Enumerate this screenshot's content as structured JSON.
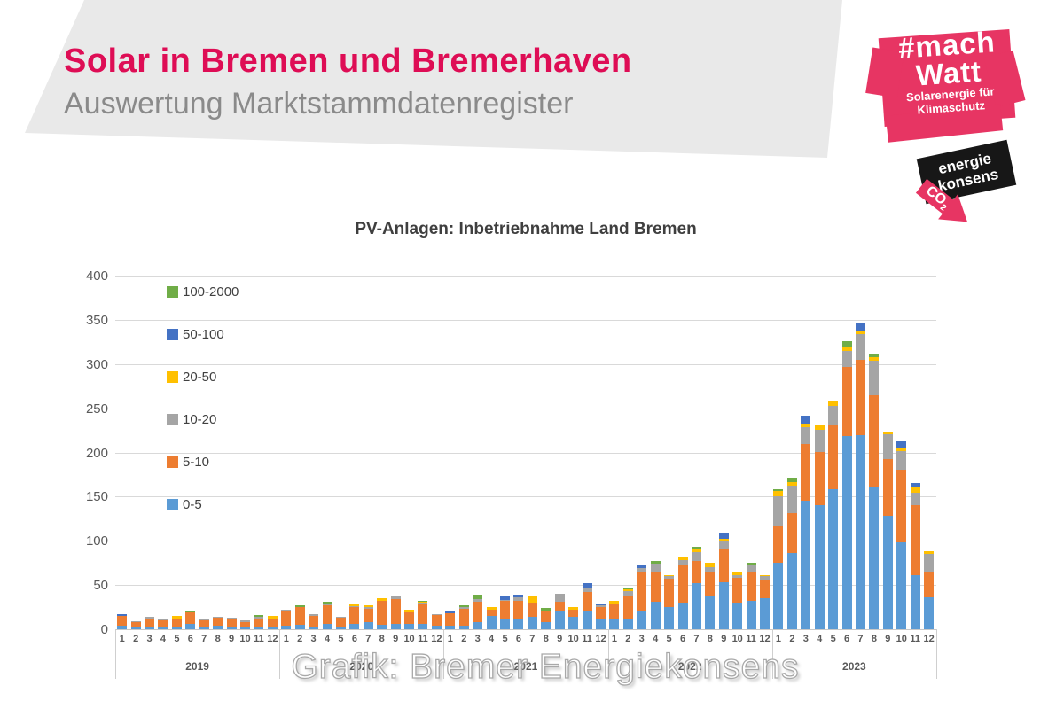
{
  "header": {
    "title": "Solar in Bremen und Bremerhaven",
    "subtitle": "Auswertung Marktstammdatenregister"
  },
  "logos": {
    "machwatt": {
      "line1": "#mach",
      "line2": "Watt",
      "tagline1": "Solarenergie für",
      "tagline2": "Klimaschutz",
      "pink": "#e73563"
    },
    "energiekonsens": {
      "line1": "energie",
      "line2": "konsens",
      "co2": "CO",
      "co2_sub": "2",
      "black": "#171717",
      "pink": "#e73563"
    }
  },
  "watermark": {
    "text": "Grafik: Bremer Energiekonsens"
  },
  "chart_data": {
    "type": "bar",
    "stacked": true,
    "title": "PV-Anlagen: Inbetriebnahme Land Bremen",
    "xlabel": "",
    "ylabel": "",
    "ylim": [
      0,
      400
    ],
    "yticks": [
      400,
      350,
      300,
      250,
      200,
      150,
      100,
      50,
      0
    ],
    "grid": true,
    "legend_position": "inside-top-left",
    "years": [
      "2019",
      "2020",
      "2021",
      "2022",
      "2023"
    ],
    "month_labels": [
      "1",
      "2",
      "3",
      "4",
      "5",
      "6",
      "7",
      "8",
      "9",
      "10",
      "11",
      "12"
    ],
    "series": [
      {
        "name": "0-5",
        "color": "#5B9BD5",
        "values": [
          4,
          2,
          3,
          2,
          2,
          6,
          2,
          4,
          3,
          2,
          3,
          2,
          4,
          5,
          3,
          6,
          3,
          6,
          8,
          5,
          6,
          6,
          6,
          4,
          4,
          4,
          8,
          15,
          12,
          11,
          14,
          8,
          20,
          14,
          20,
          12,
          11,
          11,
          21,
          31,
          25,
          30,
          52,
          38,
          53,
          30,
          32,
          35,
          75,
          86,
          145,
          140,
          158,
          219,
          220,
          161,
          128,
          98,
          61,
          36
        ]
      },
      {
        "name": "5-10",
        "color": "#ED7D31",
        "values": [
          11,
          6,
          9,
          8,
          10,
          13,
          8,
          9,
          9,
          6,
          8,
          10,
          16,
          20,
          12,
          21,
          10,
          19,
          15,
          27,
          28,
          13,
          22,
          12,
          14,
          19,
          23,
          7,
          20,
          21,
          16,
          13,
          11,
          8,
          22,
          13,
          17,
          27,
          44,
          34,
          32,
          43,
          25,
          26,
          38,
          28,
          32,
          20,
          41,
          45,
          65,
          61,
          73,
          78,
          85,
          104,
          65,
          82,
          79,
          29
        ]
      },
      {
        "name": "10-20",
        "color": "#A5A5A5",
        "values": [
          0,
          1,
          2,
          1,
          0,
          0,
          1,
          1,
          1,
          2,
          3,
          0,
          2,
          0,
          2,
          2,
          1,
          1,
          2,
          0,
          3,
          0,
          2,
          1,
          0,
          2,
          3,
          0,
          1,
          4,
          0,
          0,
          9,
          0,
          4,
          2,
          0,
          5,
          4,
          9,
          3,
          5,
          10,
          6,
          9,
          3,
          9,
          5,
          34,
          31,
          19,
          25,
          22,
          18,
          29,
          39,
          28,
          22,
          14,
          20
        ]
      },
      {
        "name": "20-50",
        "color": "#FFC000",
        "values": [
          0,
          0,
          0,
          0,
          3,
          0,
          0,
          0,
          0,
          0,
          0,
          3,
          0,
          0,
          0,
          0,
          0,
          2,
          2,
          3,
          0,
          3,
          1,
          0,
          0,
          0,
          0,
          3,
          0,
          0,
          7,
          0,
          0,
          3,
          0,
          0,
          4,
          2,
          0,
          0,
          1,
          3,
          3,
          5,
          2,
          3,
          0,
          1,
          6,
          4,
          4,
          5,
          6,
          4,
          4,
          4,
          3,
          3,
          6,
          3
        ]
      },
      {
        "name": "50-100",
        "color": "#4472C4",
        "values": [
          2,
          0,
          0,
          0,
          0,
          0,
          0,
          0,
          0,
          0,
          0,
          0,
          0,
          0,
          0,
          0,
          0,
          0,
          0,
          0,
          0,
          0,
          0,
          0,
          3,
          0,
          0,
          0,
          4,
          3,
          0,
          0,
          0,
          0,
          6,
          2,
          0,
          0,
          3,
          0,
          0,
          0,
          0,
          0,
          7,
          0,
          0,
          0,
          0,
          0,
          9,
          0,
          0,
          0,
          8,
          0,
          0,
          8,
          5,
          0
        ]
      },
      {
        "name": "100-2000",
        "color": "#70AD47",
        "values": [
          0,
          0,
          0,
          0,
          0,
          2,
          0,
          0,
          0,
          0,
          2,
          0,
          0,
          2,
          0,
          2,
          0,
          0,
          0,
          0,
          0,
          0,
          1,
          0,
          0,
          2,
          5,
          0,
          0,
          0,
          0,
          3,
          0,
          0,
          0,
          0,
          0,
          2,
          0,
          3,
          0,
          0,
          3,
          0,
          0,
          0,
          2,
          0,
          2,
          5,
          0,
          0,
          0,
          7,
          0,
          4,
          0,
          0,
          0,
          0
        ]
      }
    ],
    "legend_display_order": [
      "100-2000",
      "50-100",
      "20-50",
      "10-20",
      "5-10",
      "0-5"
    ]
  }
}
